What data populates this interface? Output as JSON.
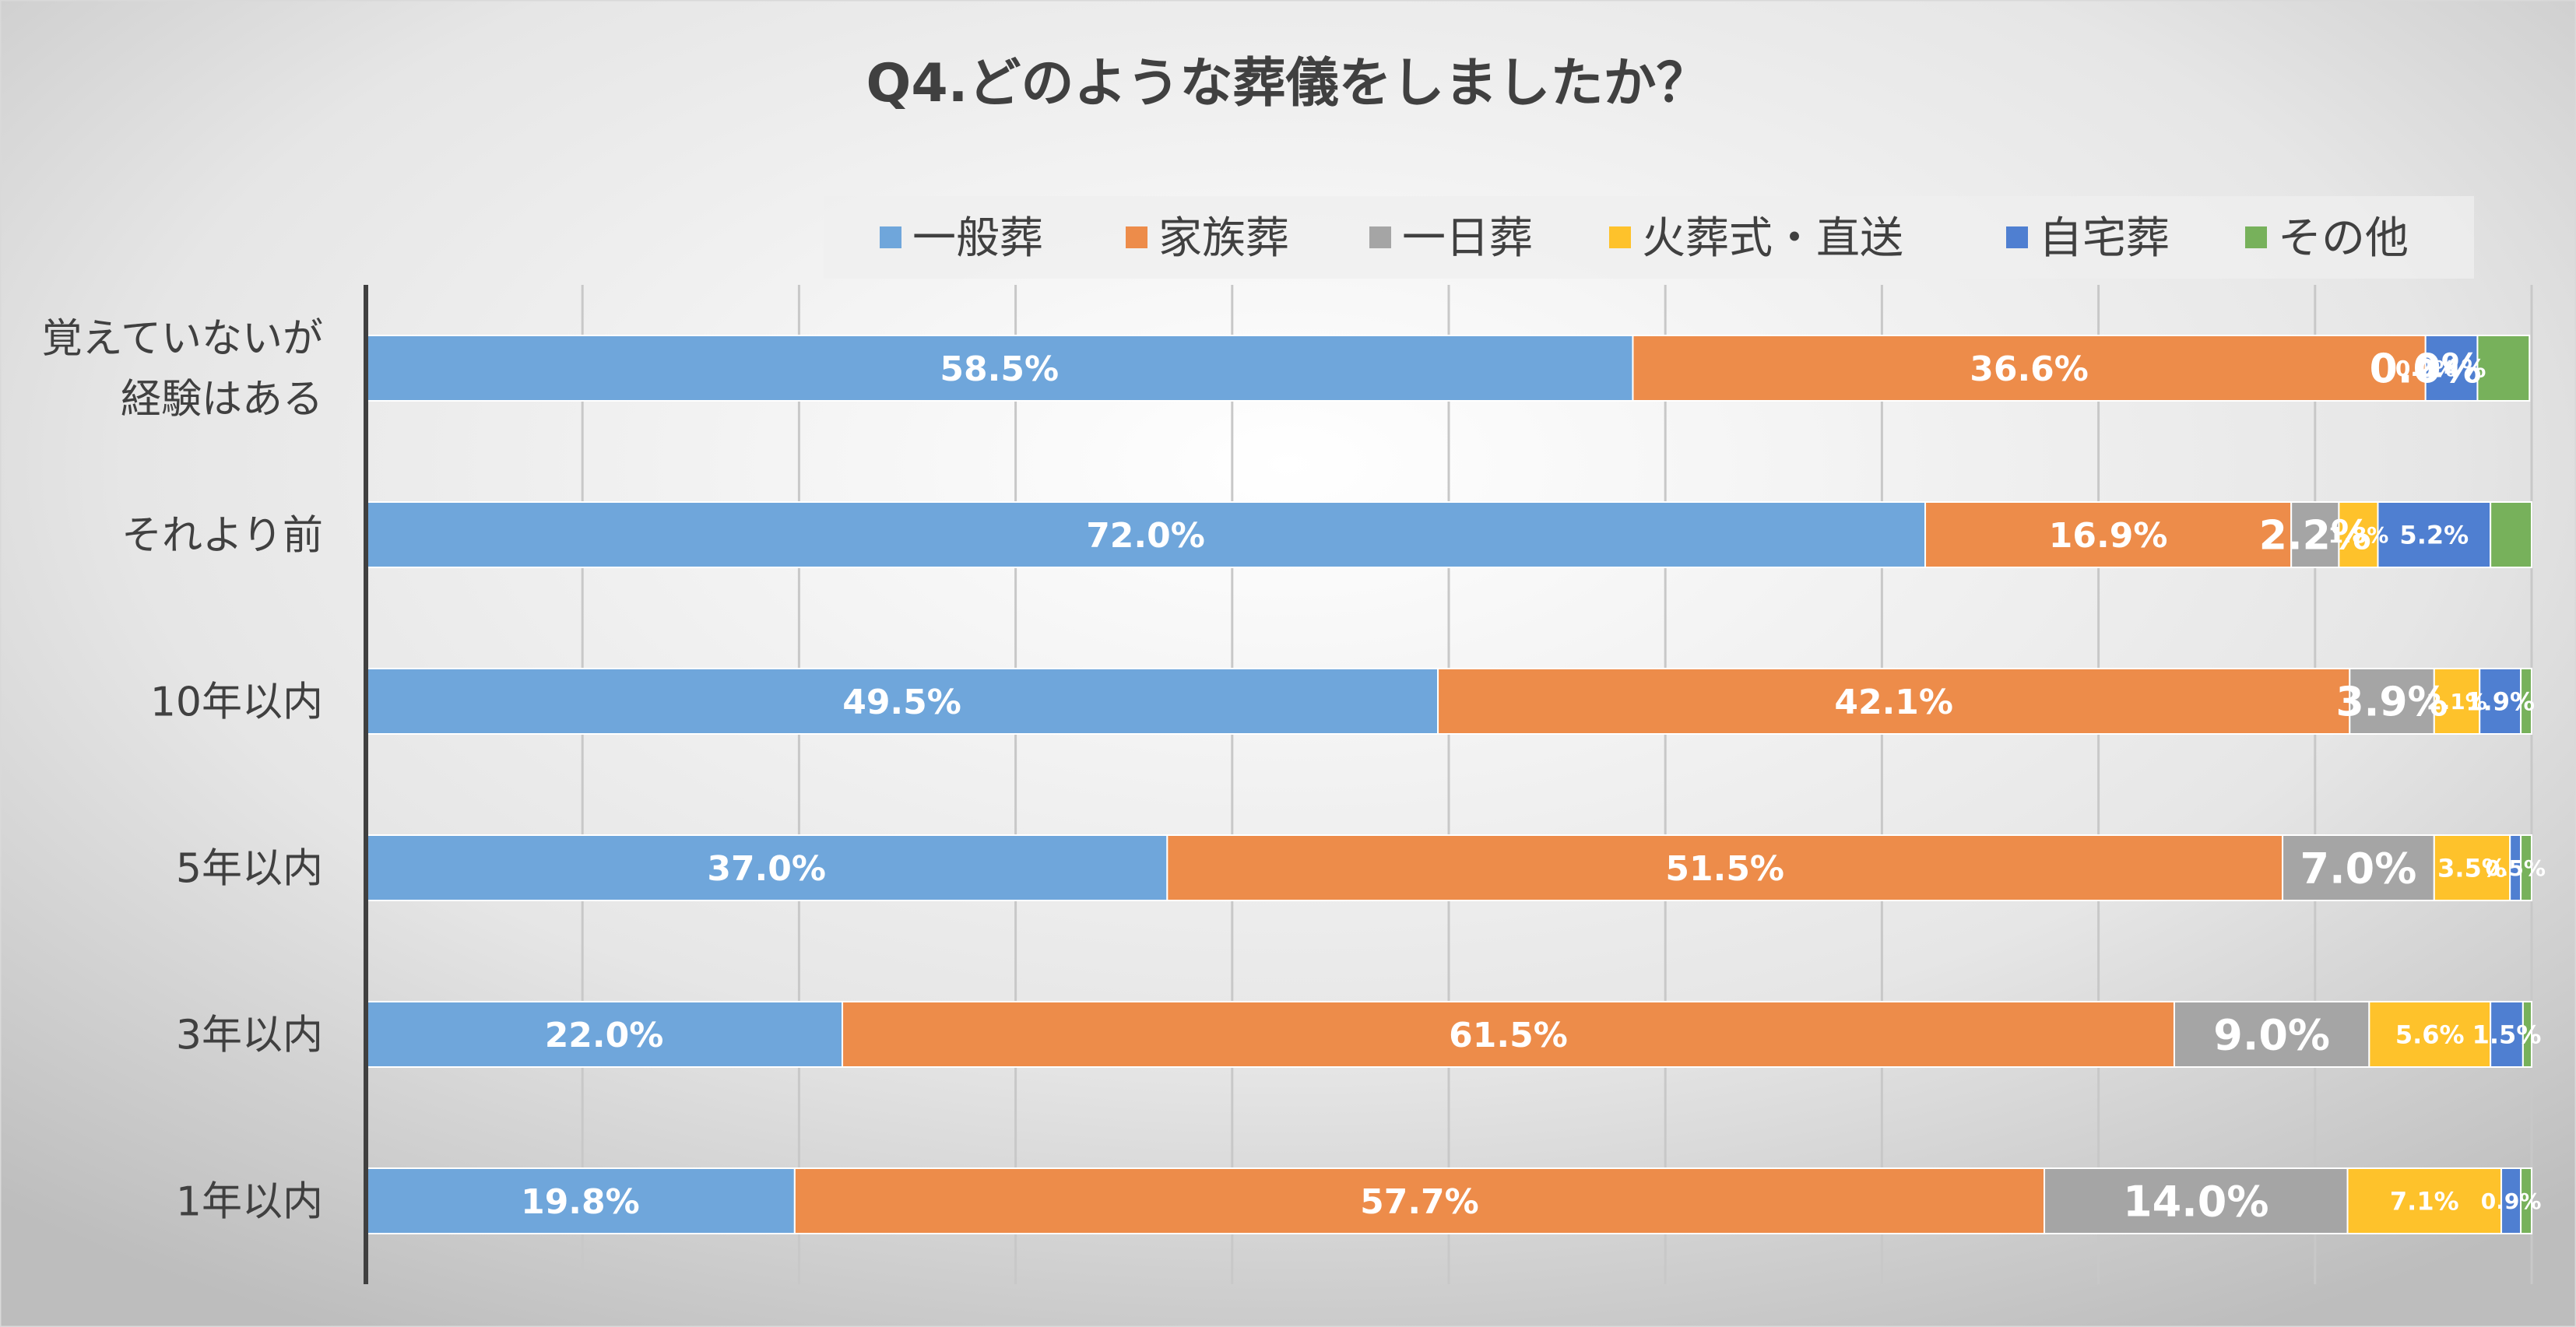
{
  "chart_data": {
    "type": "bar",
    "orientation": "horizontal",
    "stacked": "percent",
    "title": "Q4.どのような葬儀をしましたか？",
    "categories": [
      "覚えていないが経験はある",
      "それより前",
      "10年以内",
      "5年以内",
      "3年以内",
      "1年以内"
    ],
    "category_lines": [
      [
        "覚えていないが",
        "経験はある"
      ],
      [
        "それより前"
      ],
      [
        "10年以内"
      ],
      [
        "5年以内"
      ],
      [
        "3年以内"
      ],
      [
        "1年以内"
      ]
    ],
    "series": [
      {
        "name": "一般葬",
        "color": "#6FA6DB",
        "values": [
          58.5,
          72.0,
          49.5,
          37.0,
          22.0,
          19.8
        ]
      },
      {
        "name": "家族葬",
        "color": "#ED8C4A",
        "values": [
          36.6,
          16.9,
          42.1,
          51.5,
          61.5,
          57.7
        ]
      },
      {
        "name": "一日葬",
        "color": "#A5A5A5",
        "values": [
          0.0,
          2.2,
          3.9,
          7.0,
          9.0,
          14.0
        ]
      },
      {
        "name": "火葬式・直送",
        "color": "#FEC22B",
        "values": [
          0.0,
          1.8,
          2.1,
          3.5,
          5.6,
          7.1
        ]
      },
      {
        "name": "自宅葬",
        "color": "#4F7FD1",
        "values": [
          2.4,
          5.2,
          1.9,
          0.5,
          1.5,
          0.9
        ]
      },
      {
        "name": "その他",
        "color": "#77B15B",
        "values": [
          2.4,
          1.9,
          0.5,
          0.5,
          0.4,
          0.5
        ]
      }
    ],
    "data_labels": [
      [
        "58.5%",
        "36.6%",
        "0.0%",
        "0.0%",
        "2.4%",
        ""
      ],
      [
        "72.0%",
        "16.9%",
        "2.2%",
        "1.8%",
        "5.2%",
        ""
      ],
      [
        "49.5%",
        "42.1%",
        "3.9%",
        "2.1%",
        "1.9%",
        ""
      ],
      [
        "37.0%",
        "51.5%",
        "7.0%",
        "3.5%",
        "0.5%",
        ""
      ],
      [
        "22.0%",
        "61.5%",
        "9.0%",
        "5.6%",
        "1.5%",
        ""
      ],
      [
        "19.8%",
        "57.7%",
        "14.0%",
        "7.1%",
        "0.9%",
        ""
      ]
    ],
    "xlim": [
      0,
      100
    ],
    "grid": true,
    "legend_position": "top",
    "colors": {
      "background_light": "#FFFFFF",
      "background_dark": "#BDBDBD",
      "title": "#404040",
      "axis_text": "#404040",
      "label_text": "#FFFFFF"
    }
  }
}
